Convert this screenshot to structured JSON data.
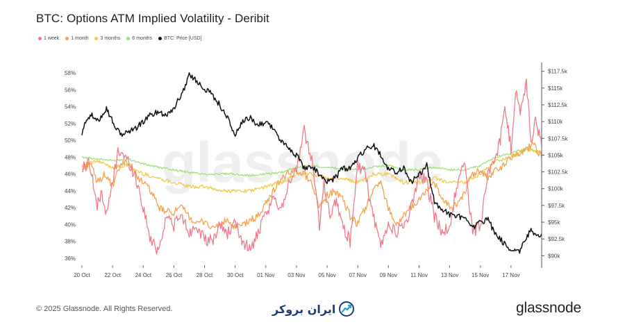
{
  "chart_data": {
    "type": "line",
    "title": "BTC: Options ATM Implied Volatility - Deribit",
    "watermark": "glassnode",
    "x_ticks": [
      "20 Oct",
      "22 Oct",
      "24 Oct",
      "26 Oct",
      "28 Oct",
      "30 Oct",
      "01 Nov",
      "03 Nov",
      "05 Nov",
      "07 Nov",
      "09 Nov",
      "11 Nov",
      "13 Nov",
      "15 Nov",
      "17 Nov"
    ],
    "x_range_days": [
      0,
      30
    ],
    "y_left": {
      "ticks": [
        "36%",
        "38%",
        "40%",
        "42%",
        "44%",
        "46%",
        "48%",
        "50%",
        "52%",
        "54%",
        "56%",
        "58%"
      ],
      "range": [
        35.5,
        59
      ]
    },
    "y_right": {
      "ticks": [
        "$90k",
        "$92.5k",
        "$95k",
        "$97.5k",
        "$100k",
        "$102.5k",
        "$105k",
        "$107.5k",
        "$110k",
        "$112.5k",
        "$115k",
        "$117.5k"
      ],
      "range": [
        89,
        118.5
      ]
    },
    "series": [
      {
        "name": "1 week",
        "color": "#f07a8a",
        "axis": "left",
        "x": [
          0,
          0.5,
          1,
          1.3,
          1.6,
          2,
          2.4,
          2.8,
          3.2,
          3.6,
          4,
          4.5,
          5,
          5.5,
          6,
          6.5,
          7,
          7.5,
          8,
          8.5,
          9,
          9.5,
          10,
          10.5,
          11,
          11.5,
          12,
          12.5,
          13,
          13.5,
          14,
          14.5,
          15,
          15.5,
          15.8,
          16.2,
          16.6,
          17,
          17.5,
          18,
          18.5,
          19,
          19.5,
          20,
          20.5,
          21,
          21.5,
          22,
          22.5,
          23,
          23.5,
          24,
          24.5,
          25,
          25.5,
          26,
          26.5,
          27,
          27.3,
          27.6,
          28,
          28.3,
          28.6,
          29,
          29.3,
          29.6,
          30
        ],
        "values": [
          46.5,
          47.5,
          42,
          44,
          41,
          45,
          49,
          48,
          47,
          45,
          42,
          38,
          37,
          41,
          40,
          41,
          39,
          40,
          38,
          38,
          40,
          39,
          40,
          38,
          37,
          39,
          41,
          43,
          42,
          45,
          46.5,
          51,
          48,
          40,
          45,
          41,
          43,
          40,
          38,
          47,
          46,
          41,
          37.5,
          40,
          39,
          40,
          42,
          46,
          45,
          41,
          39,
          40,
          45,
          47,
          39,
          40,
          46,
          48,
          50,
          54,
          49,
          56,
          53,
          57,
          50,
          52,
          50
        ]
      },
      {
        "name": "1 month",
        "color": "#f5a04a",
        "axis": "left",
        "x": [
          0,
          0.5,
          1,
          1.5,
          2,
          2.5,
          3,
          3.5,
          4,
          4.5,
          5,
          5.5,
          6,
          6.5,
          7,
          7.5,
          8,
          8.5,
          9,
          9.5,
          10,
          10.5,
          11,
          11.5,
          12,
          12.5,
          13,
          13.5,
          14,
          14.5,
          15,
          15.5,
          16,
          16.5,
          17,
          17.5,
          18,
          18.5,
          19,
          19.5,
          20,
          20.5,
          21,
          21.5,
          22,
          22.5,
          23,
          23.5,
          24,
          24.5,
          25,
          25.5,
          26,
          26.5,
          27,
          27.5,
          28,
          28.5,
          29,
          29.5,
          30
        ],
        "values": [
          46.5,
          47.5,
          45,
          46,
          44.5,
          47,
          47.5,
          46,
          45,
          44,
          42,
          41.5,
          41.5,
          42,
          41,
          40,
          40.5,
          39.5,
          40,
          40.5,
          39.5,
          40,
          40.5,
          41,
          42.5,
          44,
          45.5,
          46,
          46.5,
          46,
          45,
          42,
          43.5,
          44,
          43,
          41,
          40,
          42,
          44,
          45,
          42,
          40,
          41,
          42,
          43,
          44,
          45,
          43,
          42,
          42.5,
          44,
          46,
          46.5,
          45.5,
          46.5,
          47,
          48,
          48.5,
          49,
          49.5,
          48
        ]
      },
      {
        "name": "3 months",
        "color": "#f2c94c",
        "axis": "left",
        "x": [
          0,
          1,
          2,
          3,
          4,
          5,
          6,
          7,
          8,
          9,
          10,
          11,
          12,
          13,
          14,
          15,
          16,
          17,
          18,
          19,
          20,
          21,
          22,
          23,
          24,
          25,
          26,
          27,
          28,
          29,
          30
        ],
        "values": [
          47,
          47.5,
          46.8,
          47,
          46,
          45.5,
          45,
          44.5,
          44.5,
          44,
          44,
          44,
          44.5,
          45,
          46,
          46,
          45.5,
          45.5,
          45,
          46,
          46,
          45,
          45,
          45.5,
          45,
          45,
          46,
          47.5,
          48,
          49,
          48.5
        ]
      },
      {
        "name": "6 months",
        "color": "#a0e07a",
        "axis": "left",
        "x": [
          0,
          1,
          2,
          3,
          4,
          5,
          6,
          7,
          8,
          9,
          10,
          11,
          12,
          13,
          14,
          15,
          16,
          17,
          18,
          19,
          20,
          21,
          22,
          23,
          24,
          25,
          26,
          27,
          28,
          29,
          30
        ],
        "values": [
          48,
          47.8,
          47.6,
          47.8,
          47.2,
          46.8,
          46.5,
          46.2,
          46,
          46,
          46,
          45.8,
          46,
          46.2,
          46.8,
          47,
          46.8,
          46.6,
          46.5,
          46.8,
          47,
          46.5,
          46.5,
          46.8,
          46.5,
          46.5,
          47,
          48,
          48.5,
          49,
          48.5
        ]
      },
      {
        "name": "BTC: Price [USD]",
        "color": "#111111",
        "axis": "right",
        "x": [
          0,
          0.3,
          0.6,
          1,
          1.3,
          1.6,
          2,
          2.5,
          3,
          3.5,
          4,
          4.5,
          5,
          5.5,
          6,
          6.5,
          7,
          7.5,
          8,
          8.5,
          9,
          9.5,
          10,
          10.5,
          11,
          11.5,
          12,
          12.5,
          13,
          13.5,
          14,
          14.5,
          15,
          15.5,
          16,
          16.5,
          17,
          17.5,
          18,
          18.5,
          19,
          19.5,
          20,
          20.5,
          21,
          21.5,
          22,
          22.5,
          23,
          23.5,
          24,
          24.5,
          25,
          25.5,
          26,
          26.5,
          27,
          27.5,
          28,
          28.5,
          29,
          29.3,
          29.6,
          30
        ],
        "values": [
          108,
          110.5,
          111,
          110,
          111,
          112,
          110,
          108,
          108.5,
          109,
          110,
          111,
          111.5,
          111,
          112,
          114,
          117,
          116,
          115,
          114,
          112.5,
          110.5,
          108,
          110,
          110.5,
          109.5,
          110,
          109,
          107,
          106,
          105,
          103,
          103.5,
          102,
          101,
          101.5,
          103,
          103,
          104.5,
          106,
          106.5,
          105,
          103,
          102.5,
          103,
          101,
          102,
          103.5,
          98,
          97,
          96,
          96,
          95.5,
          94,
          95,
          95.5,
          93,
          92,
          91,
          90.5,
          92.5,
          94,
          93,
          93
        ]
      }
    ]
  },
  "legend": [
    {
      "label": "1 week",
      "color": "#f07a8a"
    },
    {
      "label": "1 month",
      "color": "#f5a04a"
    },
    {
      "label": "3 months",
      "color": "#f2c94c"
    },
    {
      "label": "6 months",
      "color": "#a0e07a"
    },
    {
      "label": "BTC: Price [USD]",
      "color": "#111111"
    }
  ],
  "footer": {
    "copyright": "© 2025 Glassnode. All Rights Reserved.",
    "brand": "ایران بروکر",
    "logo": "glassnode"
  }
}
